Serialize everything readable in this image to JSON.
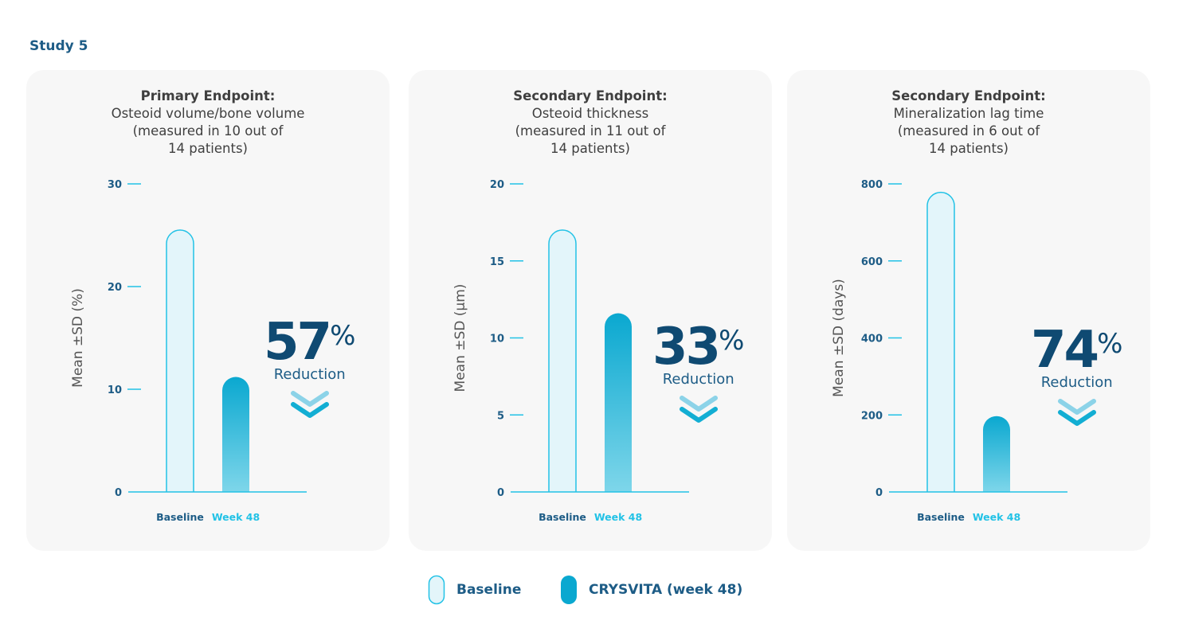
{
  "study_title": "Study 5",
  "colors": {
    "baseline_fill": "#e3f5fa",
    "baseline_stroke": "#22c2e6",
    "week48_top": "#0aa8d0",
    "week48_bottom": "#7ed6ea",
    "axis": "#22c2e6",
    "tick_text": "#1d5c86",
    "value_dark": "#0f4a72"
  },
  "chart_data": [
    {
      "type": "bar",
      "title": "Primary Endpoint:",
      "subtitle": "Osteoid volume/bone volume\n(measured in 10 out of\n14 patients)",
      "ylabel": "Mean ±SD (%)",
      "categories": [
        "Baseline",
        "Week 48"
      ],
      "values": [
        25.5,
        11.2
      ],
      "ylim": [
        0,
        30
      ],
      "yticks": [
        0,
        10,
        20,
        30
      ],
      "reduction_value": "57",
      "reduction_unit": "%",
      "reduction_label": "Reduction"
    },
    {
      "type": "bar",
      "title": "Secondary Endpoint:",
      "subtitle": "Osteoid thickness\n(measured in 11 out of\n14 patients)",
      "ylabel": "Mean ±SD (µm)",
      "categories": [
        "Baseline",
        "Week 48"
      ],
      "values": [
        17.0,
        11.6
      ],
      "ylim": [
        0,
        20
      ],
      "yticks": [
        0,
        5,
        10,
        15,
        20
      ],
      "reduction_value": "33",
      "reduction_unit": "%",
      "reduction_label": "Reduction"
    },
    {
      "type": "bar",
      "title": "Secondary Endpoint:",
      "subtitle": "Mineralization lag time\n(measured in 6 out of\n14 patients)",
      "ylabel": "Mean ±SD (days)",
      "categories": [
        "Baseline",
        "Week 48"
      ],
      "values": [
        778,
        197
      ],
      "ylim": [
        0,
        800
      ],
      "yticks": [
        0,
        200,
        400,
        600,
        800
      ],
      "reduction_value": "74",
      "reduction_unit": "%",
      "reduction_label": "Reduction"
    }
  ],
  "legend": {
    "baseline_label": "Baseline",
    "crysvita_label": "CRYSVITA (week 48)"
  }
}
